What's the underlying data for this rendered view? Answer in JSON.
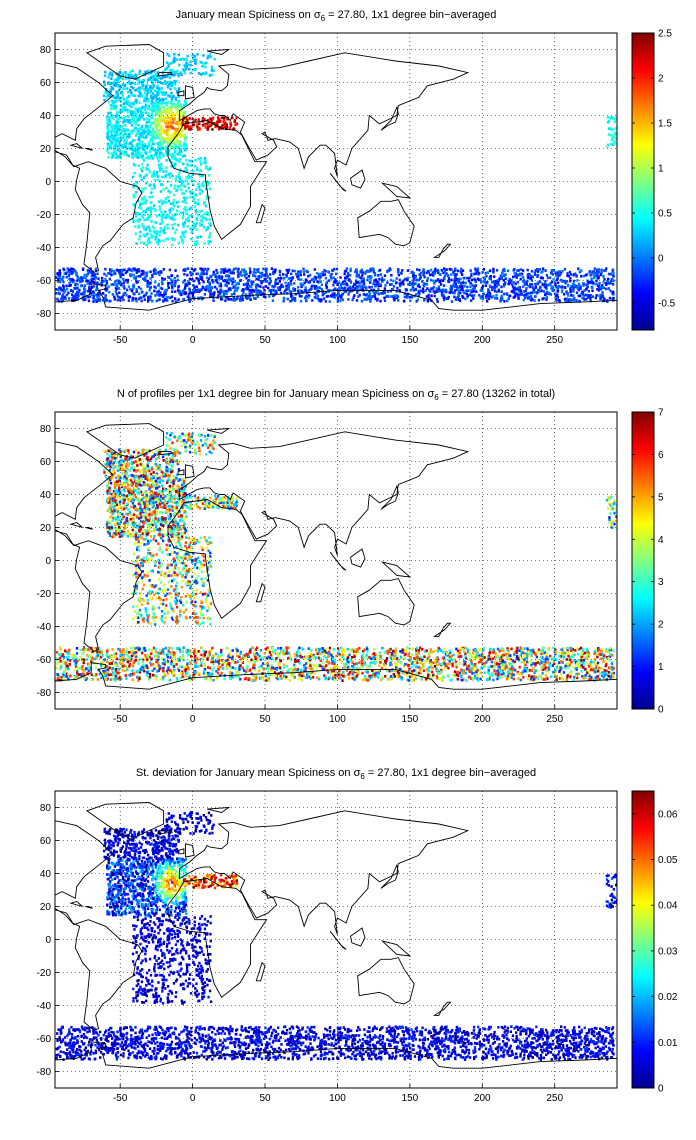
{
  "figure": {
    "background": "#ffffff",
    "map_line_color": "#000000",
    "grid_color": "#000000",
    "colormap": "jet",
    "colormap_stops": [
      "#00008f",
      "#0000ff",
      "#0080ff",
      "#00ffff",
      "#80ff80",
      "#ffff00",
      "#ff8000",
      "#ff0000",
      "#800000"
    ]
  },
  "chart_data": [
    {
      "type": "heatmap",
      "name": "panel-mean-spiciness",
      "title": {
        "before": "January mean Spiciness on ",
        "symbol": "σ",
        "subscript": "6",
        "after": " = 27.80, 1x1 degree bin−averaged"
      },
      "xlim": [
        -95,
        293
      ],
      "ylim": [
        -90,
        90
      ],
      "xticks": [
        -50,
        0,
        50,
        100,
        150,
        200,
        250
      ],
      "xtick_labels": [
        "-50",
        "0",
        "50",
        "100",
        "150",
        "200",
        "250"
      ],
      "yticks": [
        80,
        60,
        40,
        20,
        0,
        -20,
        -40,
        -60,
        -80
      ],
      "ytick_labels": [
        "80",
        "60",
        "40",
        "20",
        "0",
        "-20",
        "-40",
        "-60",
        "-80"
      ],
      "grid": "dotted",
      "colorbar": {
        "clim": [
          -0.8,
          2.5
        ],
        "ticks": [
          2.5,
          2,
          1.5,
          1,
          0.5,
          0,
          -0.5
        ],
        "tick_labels": [
          "2.5",
          "2",
          "1.5",
          "1",
          "0.5",
          "0",
          "-0.5"
        ]
      },
      "regions": [
        {
          "name": "north-atlantic",
          "lon": [
            -60,
            -5
          ],
          "lat": [
            15,
            50
          ],
          "count": 900,
          "value": [
            0.2,
            0.6
          ],
          "hot_lon": -15,
          "hot_lat": 35,
          "hot_value": 2.2
        },
        {
          "name": "labrador-irminger",
          "lon": [
            -62,
            -10
          ],
          "lat": [
            50,
            68
          ],
          "count": 320,
          "value": [
            0.1,
            0.45
          ]
        },
        {
          "name": "nordic-seas",
          "lon": [
            -20,
            15
          ],
          "lat": [
            65,
            78
          ],
          "count": 90,
          "value": [
            0.15,
            0.4
          ]
        },
        {
          "name": "mediterranean-outflow",
          "lon": [
            -8,
            30
          ],
          "lat": [
            32,
            40
          ],
          "count": 120,
          "value": [
            1.8,
            2.5
          ]
        },
        {
          "name": "south-atlantic",
          "lon": [
            -42,
            12
          ],
          "lat": [
            -38,
            15
          ],
          "count": 520,
          "value": [
            0.25,
            0.6
          ]
        },
        {
          "name": "southern-ocean",
          "lon": [
            -95,
            290
          ],
          "lat": [
            -72,
            -52
          ],
          "count": 2400,
          "value": [
            -0.45,
            0.05
          ]
        },
        {
          "name": "east-pacific",
          "lon": [
            285,
            293
          ],
          "lat": [
            20,
            40
          ],
          "count": 40,
          "value": [
            0.3,
            0.7
          ]
        }
      ]
    },
    {
      "type": "heatmap",
      "name": "panel-profile-count",
      "title": {
        "before": "N of profiles per 1x1 degree bin for January mean Spiciness on ",
        "symbol": "σ",
        "subscript": "6",
        "after": " = 27.80 (13262 in total)"
      },
      "total_profiles": 13262,
      "xlim": [
        -95,
        293
      ],
      "ylim": [
        -90,
        90
      ],
      "xticks": [
        -50,
        0,
        50,
        100,
        150,
        200,
        250
      ],
      "xtick_labels": [
        "-50",
        "0",
        "50",
        "100",
        "150",
        "200",
        "250"
      ],
      "yticks": [
        80,
        60,
        40,
        20,
        0,
        -20,
        -40,
        -60,
        -80
      ],
      "ytick_labels": [
        "80",
        "60",
        "40",
        "20",
        "0",
        "-20",
        "-40",
        "-60",
        "-80"
      ],
      "grid": "dotted",
      "colorbar": {
        "clim": [
          0,
          7
        ],
        "ticks": [
          7,
          6,
          5,
          4,
          3,
          2,
          1,
          0
        ],
        "tick_labels": [
          "7",
          "6",
          "5",
          "4",
          "3",
          "2",
          "1",
          "0"
        ]
      },
      "regions": [
        {
          "name": "north-atlantic",
          "lon": [
            -60,
            -5
          ],
          "lat": [
            15,
            50
          ],
          "count": 900,
          "value": [
            1,
            7
          ]
        },
        {
          "name": "labrador-irminger",
          "lon": [
            -62,
            -10
          ],
          "lat": [
            50,
            68
          ],
          "count": 320,
          "value": [
            1,
            7
          ]
        },
        {
          "name": "nordic-seas",
          "lon": [
            -20,
            15
          ],
          "lat": [
            65,
            78
          ],
          "count": 90,
          "value": [
            1,
            6
          ]
        },
        {
          "name": "mediterranean-outflow",
          "lon": [
            -8,
            30
          ],
          "lat": [
            32,
            40
          ],
          "count": 120,
          "value": [
            1,
            6
          ]
        },
        {
          "name": "south-atlantic",
          "lon": [
            -42,
            12
          ],
          "lat": [
            -38,
            15
          ],
          "count": 520,
          "value": [
            1,
            6
          ]
        },
        {
          "name": "southern-ocean",
          "lon": [
            -95,
            290
          ],
          "lat": [
            -72,
            -52
          ],
          "count": 2400,
          "value": [
            1,
            7
          ]
        },
        {
          "name": "east-pacific",
          "lon": [
            285,
            293
          ],
          "lat": [
            20,
            40
          ],
          "count": 40,
          "value": [
            1,
            5
          ]
        }
      ]
    },
    {
      "type": "heatmap",
      "name": "panel-std-deviation",
      "title": {
        "before": "St. deviation for January mean Spiciness on ",
        "symbol": "σ",
        "subscript": "6",
        "after": " = 27.80, 1x1 degree bin−averaged"
      },
      "xlim": [
        -95,
        293
      ],
      "ylim": [
        -90,
        90
      ],
      "xticks": [
        -50,
        0,
        50,
        100,
        150,
        200,
        250
      ],
      "xtick_labels": [
        "-50",
        "0",
        "50",
        "100",
        "150",
        "200",
        "250"
      ],
      "yticks": [
        80,
        60,
        40,
        20,
        0,
        -20,
        -40,
        -60,
        -80
      ],
      "ytick_labels": [
        "80",
        "60",
        "40",
        "20",
        "0",
        "-20",
        "-40",
        "-60",
        "-80"
      ],
      "grid": "dotted",
      "colorbar": {
        "clim": [
          0,
          0.065
        ],
        "ticks": [
          0.06,
          0.05,
          0.04,
          0.03,
          0.02,
          0.01,
          0
        ],
        "tick_labels": [
          "0.06",
          "0.05",
          "0.04",
          "0.03",
          "0.02",
          "0.01",
          "0"
        ]
      },
      "regions": [
        {
          "name": "north-atlantic",
          "lon": [
            -60,
            -5
          ],
          "lat": [
            15,
            50
          ],
          "count": 900,
          "value": [
            0,
            0.02
          ],
          "hot_lon": -15,
          "hot_lat": 35,
          "hot_value": 0.065
        },
        {
          "name": "labrador-irminger",
          "lon": [
            -62,
            -10
          ],
          "lat": [
            50,
            68
          ],
          "count": 320,
          "value": [
            0,
            0.012
          ]
        },
        {
          "name": "nordic-seas",
          "lon": [
            -20,
            15
          ],
          "lat": [
            65,
            78
          ],
          "count": 90,
          "value": [
            0,
            0.01
          ]
        },
        {
          "name": "mediterranean-outflow",
          "lon": [
            -8,
            30
          ],
          "lat": [
            32,
            40
          ],
          "count": 120,
          "value": [
            0.04,
            0.065
          ]
        },
        {
          "name": "south-atlantic",
          "lon": [
            -42,
            12
          ],
          "lat": [
            -38,
            15
          ],
          "count": 520,
          "value": [
            0,
            0.01
          ]
        },
        {
          "name": "southern-ocean",
          "lon": [
            -95,
            290
          ],
          "lat": [
            -72,
            -52
          ],
          "count": 2400,
          "value": [
            0,
            0.012
          ]
        },
        {
          "name": "east-pacific",
          "lon": [
            285,
            293
          ],
          "lat": [
            20,
            40
          ],
          "count": 40,
          "value": [
            0,
            0.015
          ]
        }
      ]
    }
  ]
}
